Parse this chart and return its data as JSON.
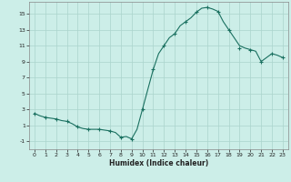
{
  "x": [
    0,
    0.5,
    1,
    1.5,
    2,
    2.5,
    3,
    3.5,
    4,
    4.5,
    5,
    5.5,
    6,
    6.5,
    7,
    7.5,
    8,
    8.5,
    9,
    9.5,
    10,
    10.5,
    11,
    11.5,
    12,
    12.5,
    13,
    13.5,
    14,
    14.5,
    15,
    15.5,
    16,
    16.5,
    17,
    17.5,
    18,
    18.5,
    19,
    19.5,
    20,
    20.5,
    21,
    21.5,
    22,
    22.5,
    23
  ],
  "y": [
    2.5,
    2.2,
    2.0,
    1.9,
    1.8,
    1.6,
    1.5,
    1.2,
    0.8,
    0.6,
    0.5,
    0.5,
    0.5,
    0.4,
    0.3,
    0.1,
    -0.5,
    -0.4,
    -0.7,
    0.5,
    3.0,
    5.5,
    8.0,
    10.0,
    11.0,
    12.0,
    12.5,
    13.5,
    14.0,
    14.5,
    15.2,
    15.7,
    15.8,
    15.6,
    15.3,
    14.0,
    13.0,
    12.0,
    11.0,
    10.7,
    10.5,
    10.3,
    9.0,
    9.5,
    10.0,
    9.8,
    9.5
  ],
  "marker_x": [
    0,
    1,
    2,
    3,
    4,
    5,
    6,
    7,
    8,
    9,
    10,
    11,
    12,
    13,
    14,
    15,
    16,
    17,
    18,
    19,
    20,
    21,
    22,
    23
  ],
  "marker_y": [
    2.5,
    2.0,
    1.8,
    1.5,
    0.8,
    0.5,
    0.5,
    0.3,
    -0.5,
    -0.7,
    3.0,
    8.0,
    11.0,
    12.5,
    14.0,
    15.2,
    15.8,
    15.3,
    13.0,
    10.7,
    10.5,
    9.0,
    10.0,
    9.5
  ],
  "line_color": "#1a7060",
  "marker": "+",
  "marker_size": 3,
  "bg_color": "#cceee8",
  "grid_color": "#aad4cc",
  "xlabel": "Humidex (Indice chaleur)",
  "xlim": [
    -0.5,
    23.5
  ],
  "ylim": [
    -2,
    16.5
  ],
  "yticks": [
    -1,
    1,
    3,
    5,
    7,
    9,
    11,
    13,
    15
  ],
  "xticks": [
    0,
    1,
    2,
    3,
    4,
    5,
    6,
    7,
    8,
    9,
    10,
    11,
    12,
    13,
    14,
    15,
    16,
    17,
    18,
    19,
    20,
    21,
    22,
    23
  ]
}
